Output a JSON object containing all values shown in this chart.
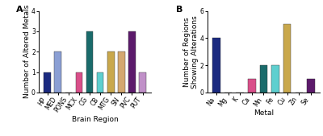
{
  "panel_a": {
    "categories": [
      "HP",
      "MED",
      "PONS",
      "MCX",
      "CG",
      "CB",
      "MTG",
      "SN",
      "PVC",
      "PUT"
    ],
    "values": [
      1,
      2,
      0,
      1,
      3,
      1,
      2,
      2,
      3,
      1
    ],
    "colors": [
      "#1b2a80",
      "#8b9fd4",
      "#8b9fd4",
      "#d94f8a",
      "#1a6b6b",
      "#5ecfcf",
      "#c9a84c",
      "#d4a870",
      "#5c1a6b",
      "#c090c8"
    ],
    "ylabel": "Number of Altered Metals",
    "xlabel": "Brain Region",
    "ylim": [
      0,
      4
    ],
    "yticks": [
      0,
      1,
      2,
      3,
      4
    ],
    "label": "A"
  },
  "panel_b": {
    "categories": [
      "Na",
      "Mg",
      "K",
      "Ca",
      "Mn",
      "Fe",
      "Cu",
      "Zn",
      "Se"
    ],
    "values": [
      4,
      0,
      0,
      1,
      2,
      2,
      5,
      0,
      1
    ],
    "colors": [
      "#1b2a80",
      "#1b2a80",
      "#1b2a80",
      "#d94f8a",
      "#1a6b6b",
      "#5ecfcf",
      "#c9a84c",
      "#c9a84c",
      "#5c1a6b"
    ],
    "ylabel": "Number of Regions\nShowing Alterations",
    "xlabel": "Metal",
    "ylim": [
      0,
      6
    ],
    "yticks": [
      0,
      2,
      4,
      6
    ],
    "label": "B"
  },
  "background_color": "#ffffff",
  "bar_edge_color": "#333333",
  "bar_edge_width": 0.3,
  "tick_fontsize": 5.5,
  "axis_label_fontsize": 6.5,
  "panel_label_fontsize": 8
}
